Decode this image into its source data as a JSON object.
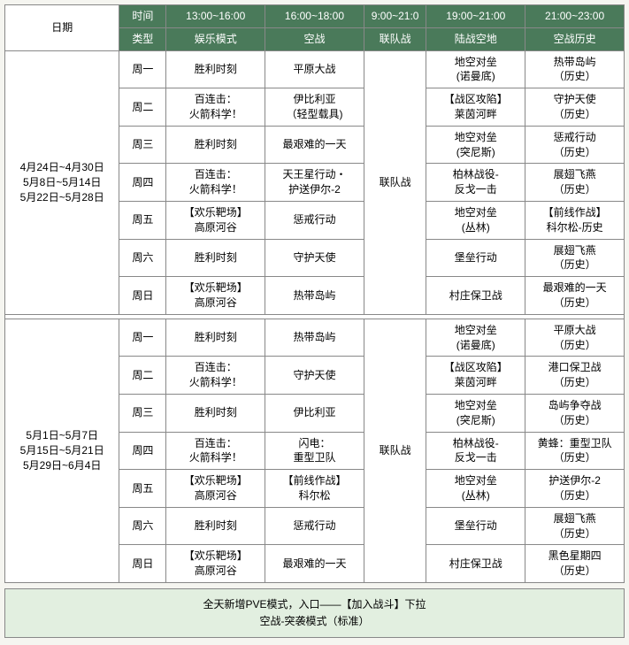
{
  "colors": {
    "header_bg": "#4a7a5a",
    "header_fg": "#ffffff",
    "border": "#888888",
    "footer_bg": "#e2efe0"
  },
  "header": {
    "date_label": "日期",
    "time_label": "时间",
    "type_label": "类型",
    "slots": [
      "13:00~16:00",
      "16:00~18:00",
      "9:00~21:0",
      "19:00~21:00",
      "21:00~23:00"
    ],
    "types": [
      "娱乐模式",
      "空战",
      "联队战",
      "陆战空地",
      "空战历史"
    ]
  },
  "block1": {
    "dates": "4月24日~4月30日\n5月8日~5月14日\n5月22日~5月28日",
    "col3_merged": "联队战",
    "rows": [
      {
        "day": "周一",
        "c1": "胜利时刻",
        "c2": "平原大战",
        "c4": "地空对垒\n(诺曼底)",
        "c5": "热带岛屿\n（历史）"
      },
      {
        "day": "周二",
        "c1": "百连击：\n火箭科学！",
        "c2": "伊比利亚\n（轻型载具)",
        "c4": "【战区攻陷】\n莱茵河畔",
        "c5": "守护天使\n（历史）"
      },
      {
        "day": "周三",
        "c1": "胜利时刻",
        "c2": "最艰难的一天",
        "c4": "地空对垒\n(突尼斯)",
        "c5": "惩戒行动\n（历史）"
      },
      {
        "day": "周四",
        "c1": "百连击：\n火箭科学！",
        "c2": "天王星行动・\n护送伊尔-2",
        "c4": "柏林战役-\n反戈一击",
        "c5": "展翅飞燕\n（历史）"
      },
      {
        "day": "周五",
        "c1": "【欢乐靶场】\n高原河谷",
        "c2": "惩戒行动",
        "c4": "地空对垒\n(丛林)",
        "c5": "【前线作战】\n科尔松-历史"
      },
      {
        "day": "周六",
        "c1": "胜利时刻",
        "c2": "守护天使",
        "c4": "堡垒行动",
        "c5": "展翅飞燕\n（历史）"
      },
      {
        "day": "周日",
        "c1": "【欢乐靶场】\n高原河谷",
        "c2": "热带岛屿",
        "c4": "村庄保卫战",
        "c5": "最艰难的一天\n（历史）"
      }
    ]
  },
  "block2": {
    "dates": "5月1日~5月7日\n5月15日~5月21日\n5月29日~6月4日",
    "col3_merged": "联队战",
    "rows": [
      {
        "day": "周一",
        "c1": "胜利时刻",
        "c2": "热带岛屿",
        "c4": "地空对垒\n(诺曼底)",
        "c5": "平原大战\n（历史）"
      },
      {
        "day": "周二",
        "c1": "百连击：\n火箭科学！",
        "c2": "守护天使",
        "c4": "【战区攻陷】\n莱茵河畔",
        "c5": "港口保卫战\n（历史）"
      },
      {
        "day": "周三",
        "c1": "胜利时刻",
        "c2": "伊比利亚",
        "c4": "地空对垒\n(突尼斯)",
        "c5": "岛屿争夺战\n（历史）"
      },
      {
        "day": "周四",
        "c1": "百连击：\n火箭科学！",
        "c2": "闪电：\n重型卫队",
        "c4": "柏林战役-\n反戈一击",
        "c5": "黄蜂：重型卫队\n（历史）"
      },
      {
        "day": "周五",
        "c1": "【欢乐靶场】\n高原河谷",
        "c2": "【前线作战】\n科尔松",
        "c4": "地空对垒\n(丛林)",
        "c5": "护送伊尔-2\n（历史）"
      },
      {
        "day": "周六",
        "c1": "胜利时刻",
        "c2": "惩戒行动",
        "c4": "堡垒行动",
        "c5": "展翅飞燕\n（历史）"
      },
      {
        "day": "周日",
        "c1": "【欢乐靶场】\n高原河谷",
        "c2": "最艰难的一天",
        "c4": "村庄保卫战",
        "c5": "黑色星期四\n（历史）"
      }
    ]
  },
  "footer": {
    "line1": "全天新增PVE模式，入口——【加入战斗】下拉",
    "line2": "空战-突袭模式（标准）"
  }
}
